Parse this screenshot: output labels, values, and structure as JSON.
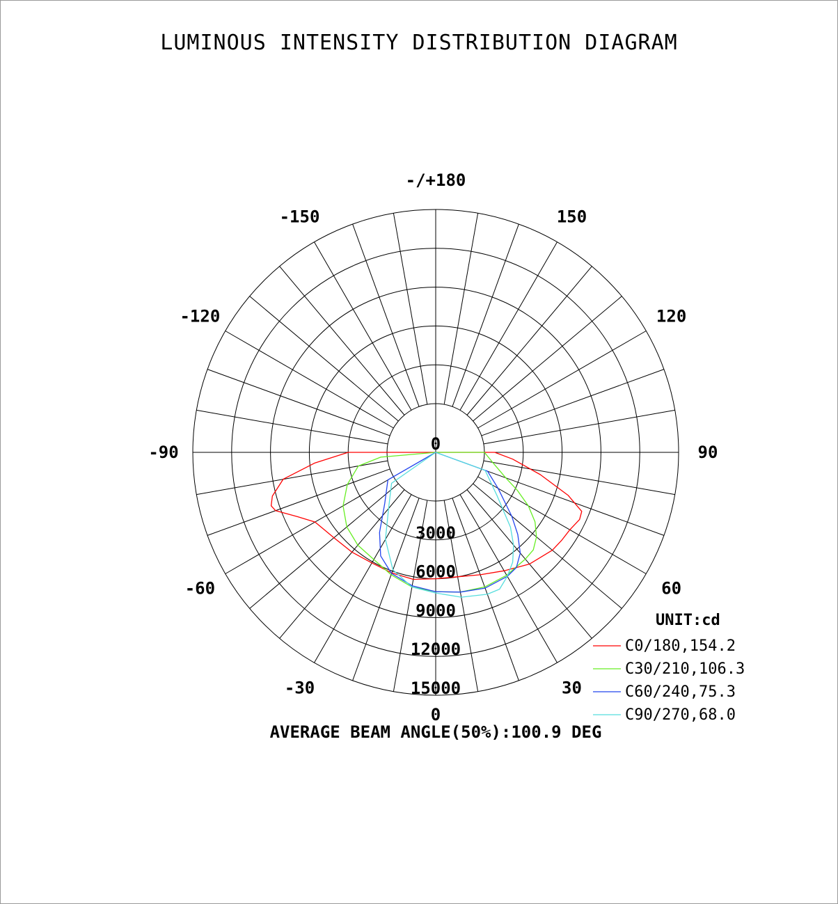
{
  "title": "LUMINOUS INTENSITY DISTRIBUTION DIAGRAM",
  "unit_label": "UNIT:cd",
  "beam_angle_text": "AVERAGE BEAM ANGLE(50%):100.9 DEG",
  "center_label": "0",
  "bottom_label": "0",
  "chart_data": {
    "type": "polar",
    "title": "LUMINOUS INTENSITY DISTRIBUTION DIAGRAM",
    "unit": "cd",
    "r_max": 15000,
    "r_ticks": [
      3000,
      6000,
      9000,
      12000,
      15000
    ],
    "r_tick_labels": [
      "3000",
      "6000",
      "9000",
      "12000",
      "15000"
    ],
    "angle_labels": [
      {
        "angle": 180,
        "text": "-/+180"
      },
      {
        "angle": -150,
        "text": "-150"
      },
      {
        "angle": 150,
        "text": "150"
      },
      {
        "angle": -120,
        "text": "-120"
      },
      {
        "angle": 120,
        "text": "120"
      },
      {
        "angle": -90,
        "text": "-90"
      },
      {
        "angle": 90,
        "text": "90"
      },
      {
        "angle": -60,
        "text": "-60"
      },
      {
        "angle": 60,
        "text": "60"
      },
      {
        "angle": -30,
        "text": "-30"
      },
      {
        "angle": 30,
        "text": "30"
      }
    ],
    "grid_step_deg": 10,
    "series": [
      {
        "name": "C0/180,154.2",
        "color": "#ff0000",
        "points": [
          [
            -90,
            3000
          ],
          [
            -85,
            5600
          ],
          [
            -80,
            8200
          ],
          [
            -75,
            9300
          ],
          [
            -72,
            9600
          ],
          [
            -70,
            9400
          ],
          [
            -65,
            8000
          ],
          [
            -60,
            7000
          ],
          [
            -50,
            6500
          ],
          [
            -40,
            6300
          ],
          [
            -30,
            6100
          ],
          [
            -20,
            6150
          ],
          [
            -10,
            6200
          ],
          [
            0,
            6000
          ],
          [
            10,
            6000
          ],
          [
            20,
            6300
          ],
          [
            30,
            6800
          ],
          [
            40,
            7500
          ],
          [
            50,
            8000
          ],
          [
            55,
            8100
          ],
          [
            60,
            8200
          ],
          [
            65,
            8500
          ],
          [
            68,
            8400
          ],
          [
            72,
            7000
          ],
          [
            78,
            4500
          ],
          [
            85,
            2200
          ],
          [
            90,
            800
          ]
        ]
      },
      {
        "name": "C30/210,106.3",
        "color": "#66ee22",
        "points": [
          [
            -85,
            500
          ],
          [
            -80,
            2300
          ],
          [
            -70,
            3500
          ],
          [
            -60,
            4500
          ],
          [
            -50,
            5200
          ],
          [
            -40,
            5600
          ],
          [
            -30,
            5800
          ],
          [
            -20,
            6300
          ],
          [
            -10,
            6800
          ],
          [
            0,
            7000
          ],
          [
            10,
            7200
          ],
          [
            20,
            7300
          ],
          [
            30,
            7200
          ],
          [
            40,
            7000
          ],
          [
            45,
            6900
          ],
          [
            50,
            6400
          ],
          [
            55,
            5600
          ],
          [
            60,
            4500
          ],
          [
            65,
            3200
          ],
          [
            70,
            2000
          ],
          [
            80,
            700
          ],
          [
            90,
            0
          ]
        ]
      },
      {
        "name": "C60/240,75.3",
        "color": "#2244ee",
        "points": [
          [
            -60,
            500
          ],
          [
            -45,
            1800
          ],
          [
            -35,
            3800
          ],
          [
            -28,
            5300
          ],
          [
            -20,
            6200
          ],
          [
            -10,
            6700
          ],
          [
            0,
            7000
          ],
          [
            10,
            7200
          ],
          [
            20,
            7400
          ],
          [
            30,
            7300
          ],
          [
            35,
            7100
          ],
          [
            40,
            6400
          ],
          [
            45,
            5200
          ],
          [
            50,
            3900
          ],
          [
            60,
            1800
          ],
          [
            70,
            500
          ]
        ]
      },
      {
        "name": "C90/270,68.0",
        "color": "#55dddd",
        "points": [
          [
            -55,
            400
          ],
          [
            -40,
            1900
          ],
          [
            -30,
            4000
          ],
          [
            -20,
            5900
          ],
          [
            -10,
            6800
          ],
          [
            0,
            7100
          ],
          [
            10,
            7600
          ],
          [
            20,
            7900
          ],
          [
            25,
            7900
          ],
          [
            30,
            7300
          ],
          [
            35,
            6600
          ],
          [
            40,
            5600
          ],
          [
            45,
            4400
          ],
          [
            55,
            2000
          ],
          [
            70,
            300
          ]
        ]
      }
    ]
  }
}
